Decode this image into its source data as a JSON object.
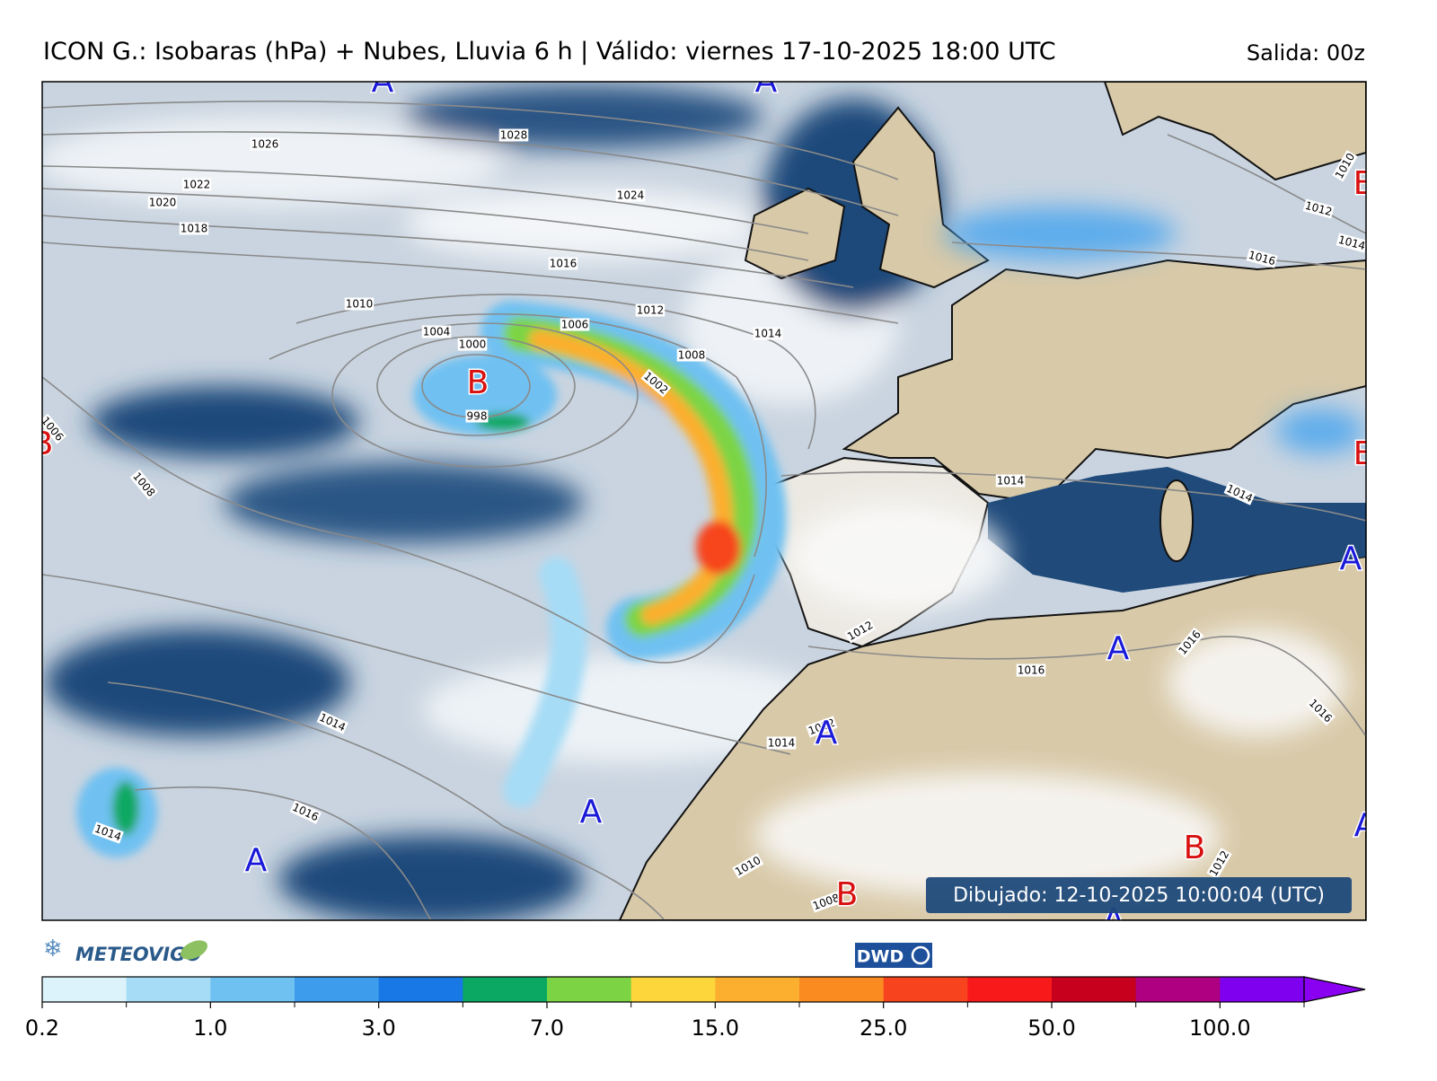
{
  "header": {
    "title": "ICON G.: Isobaras (hPa) + Nubes, Lluvia 6 h | Válido: viernes 17-10-2025 18:00 UTC",
    "run": "Salida: 00z"
  },
  "isobar_labels": [
    1026,
    1028,
    1024,
    1022,
    1020,
    1018,
    1016,
    1010,
    1012,
    1004,
    1006,
    1000,
    1014,
    1008,
    1002,
    998,
    1006,
    1008,
    1014,
    1014,
    1012,
    1016,
    1016,
    1016,
    1014,
    1014,
    1012,
    1016,
    1014,
    1010,
    1010,
    1012,
    1014,
    1016,
    1012,
    1008
  ],
  "pressure_centers": [
    "A",
    "A",
    "B",
    "B",
    "B",
    "B",
    "A",
    "A",
    "A",
    "A",
    "A",
    "A",
    "B",
    "B",
    "A"
  ],
  "drawn": "Dibujado: 12-10-2025 10:00:04 (UTC)",
  "logos": [
    "METEOVIGO",
    "DWD"
  ],
  "colorbar": {
    "colors": [
      "#dcf3fb",
      "#a6dcf6",
      "#6fc1f2",
      "#3e9cec",
      "#1878e6",
      "#0aa862",
      "#7cd444",
      "#fdd63b",
      "#fcaf2e",
      "#fa8b21",
      "#f7441f",
      "#f81a1a",
      "#c7001e",
      "#ae0080",
      "#7f00ee"
    ],
    "extend_color": "#8a00f0",
    "ticks": [
      0.2,
      {
        "value": 1,
        "label": "1.0"
      },
      {
        "value": 3,
        "label": "3.0"
      },
      {
        "value": 7,
        "label": "7.0"
      },
      {
        "value": 15,
        "label": "15.0"
      },
      {
        "value": 25,
        "label": "25.0"
      },
      {
        "value": 50,
        "label": "50.0"
      },
      {
        "value": 100,
        "label": "100.0"
      }
    ]
  }
}
